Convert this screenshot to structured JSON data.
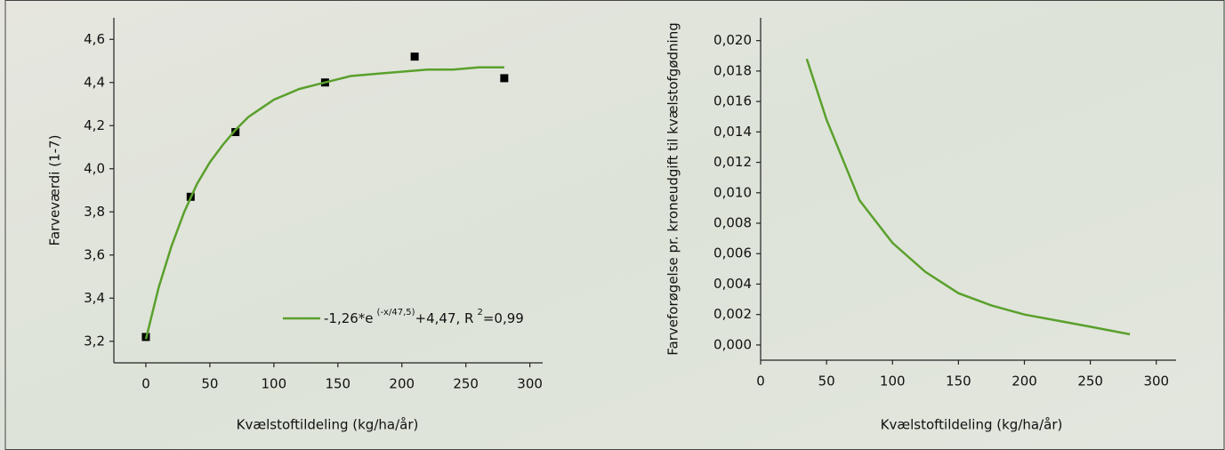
{
  "chart_data": [
    {
      "type": "scatter",
      "x_label": "Kvælstoftildeling (kg/ha/år)",
      "y_label": "Farveværdi (1-7)",
      "xlim": [
        -25,
        310
      ],
      "ylim": [
        3.1,
        4.7
      ],
      "xticks": [
        0,
        50,
        100,
        150,
        200,
        250,
        300
      ],
      "yticks": [
        {
          "value": 3.2,
          "label": "3,2"
        },
        {
          "value": 3.4,
          "label": "3,4"
        },
        {
          "value": 3.6,
          "label": "3,6"
        },
        {
          "value": 3.8,
          "label": "3,8"
        },
        {
          "value": 4.0,
          "label": "4,0"
        },
        {
          "value": 4.2,
          "label": "4,2"
        },
        {
          "value": 4.4,
          "label": "4,4"
        },
        {
          "value": 4.6,
          "label": "4,6"
        }
      ],
      "series": [
        {
          "type": "scatter",
          "color": "#000000",
          "x": [
            0,
            35,
            70,
            140,
            210,
            280
          ],
          "values": [
            3.22,
            3.87,
            4.17,
            4.4,
            4.52,
            4.42
          ]
        },
        {
          "type": "line",
          "color": "#5aa02c",
          "x": [
            0,
            10,
            20,
            30,
            40,
            50,
            60,
            70,
            80,
            90,
            100,
            120,
            140,
            160,
            180,
            200,
            220,
            240,
            260,
            280
          ],
          "values": [
            3.21,
            3.45,
            3.64,
            3.8,
            3.93,
            4.03,
            4.11,
            4.18,
            4.24,
            4.28,
            4.32,
            4.37,
            4.4,
            4.43,
            4.44,
            4.45,
            4.46,
            4.46,
            4.47,
            4.47
          ]
        }
      ],
      "legend": {
        "text": "-1,26*e",
        "sup1": "(-x/47,5)",
        "mid": "+4,47, R",
        "sup2": "2",
        "end": "=0,99"
      }
    },
    {
      "type": "line",
      "x_label": "Kvælstoftildeling (kg/ha/år)",
      "y_label": "Farveforøgelse pr. kroneudgift til kvælstofgødning",
      "xlim": [
        0,
        315
      ],
      "ylim": [
        -0.001,
        0.0215
      ],
      "xticks": [
        0,
        50,
        100,
        150,
        200,
        250,
        300
      ],
      "yticks": [
        {
          "value": 0,
          "label": "0,000"
        },
        {
          "value": 0.002,
          "label": "0,002"
        },
        {
          "value": 0.004,
          "label": "0,004"
        },
        {
          "value": 0.006,
          "label": "0,006"
        },
        {
          "value": 0.008,
          "label": "0,008"
        },
        {
          "value": 0.01,
          "label": "0,010"
        },
        {
          "value": 0.012,
          "label": "0,012"
        },
        {
          "value": 0.014,
          "label": "0,014"
        },
        {
          "value": 0.016,
          "label": "0,016"
        },
        {
          "value": 0.018,
          "label": "0,018"
        },
        {
          "value": 0.02,
          "label": "0,020"
        }
      ],
      "series": [
        {
          "type": "line",
          "color": "#5aa02c",
          "x": [
            35,
            50,
            75,
            100,
            125,
            150,
            175,
            200,
            225,
            250,
            280
          ],
          "values": [
            0.0188,
            0.0148,
            0.0095,
            0.0067,
            0.0048,
            0.0034,
            0.0026,
            0.002,
            0.0016,
            0.0012,
            0.0007
          ]
        }
      ]
    }
  ]
}
